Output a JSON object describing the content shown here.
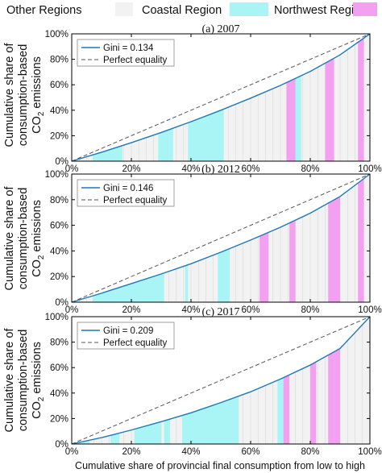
{
  "legend": {
    "items": [
      {
        "label": "Other Regions",
        "color": "#f2f2f2"
      },
      {
        "label": "Coastal Region",
        "color": "#a9f4f4"
      },
      {
        "label": "Northwest Region",
        "color": "#f4a0f1"
      }
    ],
    "placement": "top"
  },
  "ylabel_line1": "Cumulative share of",
  "ylabel_line2": "consumption-based",
  "ylabel_line3_pre": "CO",
  "ylabel_line3_sub": "2",
  "ylabel_line3_post": " emissions",
  "colors": {
    "curve": "#1f77b4",
    "equality": "#555555",
    "axis": "#000000",
    "gridline": "#d9d9d9"
  },
  "chart_data": [
    {
      "type": "area",
      "title": "(a) 2007",
      "xlabel": "",
      "xlim": [
        0,
        100
      ],
      "ylim": [
        0,
        100
      ],
      "xticks": [
        "0%",
        "20%",
        "40%",
        "60%",
        "80%",
        "100%"
      ],
      "yticks": [
        "0%",
        "20%",
        "40%",
        "60%",
        "80%",
        "100%"
      ],
      "series": [
        {
          "name": "Gini = 0.134",
          "x": [
            0,
            10,
            20,
            30,
            40,
            50,
            60,
            70,
            80,
            90,
            100
          ],
          "y": [
            0,
            7,
            14.5,
            22.5,
            31,
            40,
            49.5,
            59.5,
            70.5,
            83.5,
            100
          ]
        },
        {
          "name": "Perfect equality",
          "x": [
            0,
            100
          ],
          "y": [
            0,
            100
          ]
        }
      ],
      "region_bands": [
        {
          "region": "Coastal Region",
          "x0": 7,
          "x1": 17
        },
        {
          "region": "Coastal Region",
          "x0": 29,
          "x1": 34
        },
        {
          "region": "Coastal Region",
          "x0": 39,
          "x1": 51
        },
        {
          "region": "Northwest Region",
          "x0": 72,
          "x1": 75
        },
        {
          "region": "Coastal Region",
          "x0": 75,
          "x1": 77
        },
        {
          "region": "Northwest Region",
          "x0": 85,
          "x1": 88
        },
        {
          "region": "Northwest Region",
          "x0": 96,
          "x1": 98
        }
      ],
      "grid": false,
      "legend_placement": "top-left"
    },
    {
      "type": "area",
      "title": "(b) 2012",
      "xlabel": "",
      "xlim": [
        0,
        100
      ],
      "ylim": [
        0,
        100
      ],
      "xticks": [
        "0%",
        "20%",
        "40%",
        "60%",
        "80%",
        "100%"
      ],
      "yticks": [
        "0%",
        "20%",
        "40%",
        "60%",
        "80%",
        "100%"
      ],
      "series": [
        {
          "name": "Gini = 0.146",
          "x": [
            0,
            10,
            20,
            30,
            40,
            50,
            60,
            70,
            80,
            90,
            100
          ],
          "y": [
            0,
            7,
            14.5,
            22,
            30,
            39,
            48.5,
            58.5,
            69.5,
            82.5,
            100
          ]
        },
        {
          "name": "Perfect equality",
          "x": [
            0,
            100
          ],
          "y": [
            0,
            100
          ]
        }
      ],
      "region_bands": [
        {
          "region": "Coastal Region",
          "x0": 7,
          "x1": 31
        },
        {
          "region": "Coastal Region",
          "x0": 38,
          "x1": 39
        },
        {
          "region": "Coastal Region",
          "x0": 49,
          "x1": 53
        },
        {
          "region": "Northwest Region",
          "x0": 63,
          "x1": 66
        },
        {
          "region": "Northwest Region",
          "x0": 73,
          "x1": 75
        },
        {
          "region": "Northwest Region",
          "x0": 86,
          "x1": 90
        },
        {
          "region": "Northwest Region",
          "x0": 96,
          "x1": 98
        }
      ],
      "grid": false,
      "legend_placement": "top-left"
    },
    {
      "type": "area",
      "title": "(c) 2017",
      "xlabel": "Cumulative share of provincial final consumption from low to high",
      "xlim": [
        0,
        100
      ],
      "ylim": [
        0,
        100
      ],
      "xticks": [
        "0%",
        "20%",
        "40%",
        "60%",
        "80%",
        "100%"
      ],
      "yticks": [
        "0%",
        "20%",
        "40%",
        "60%",
        "80%",
        "100%"
      ],
      "series": [
        {
          "name": "Gini = 0.209",
          "x": [
            0,
            10,
            20,
            30,
            40,
            50,
            60,
            70,
            80,
            90,
            100
          ],
          "y": [
            0,
            5,
            11,
            17.5,
            24.5,
            32.5,
            41,
            51,
            62,
            75,
            100
          ]
        },
        {
          "name": "Perfect equality",
          "x": [
            0,
            100
          ],
          "y": [
            0,
            100
          ]
        }
      ],
      "region_bands": [
        {
          "region": "Coastal Region",
          "x0": 2,
          "x1": 6
        },
        {
          "region": "Coastal Region",
          "x0": 13,
          "x1": 16
        },
        {
          "region": "Coastal Region",
          "x0": 21,
          "x1": 30
        },
        {
          "region": "Coastal Region",
          "x0": 31,
          "x1": 33
        },
        {
          "region": "Coastal Region",
          "x0": 37,
          "x1": 56
        },
        {
          "region": "Coastal Region",
          "x0": 69,
          "x1": 71
        },
        {
          "region": "Northwest Region",
          "x0": 71,
          "x1": 73
        },
        {
          "region": "Northwest Region",
          "x0": 80,
          "x1": 82
        },
        {
          "region": "Northwest Region",
          "x0": 86,
          "x1": 88
        },
        {
          "region": "Northwest Region",
          "x0": 88,
          "x1": 90
        }
      ],
      "grid": false,
      "legend_placement": "top-left"
    }
  ]
}
